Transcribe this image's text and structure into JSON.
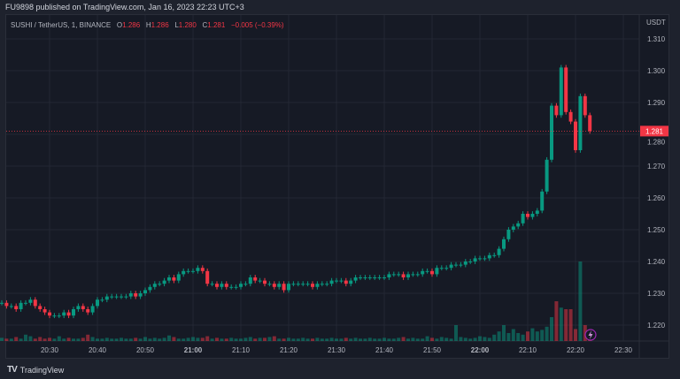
{
  "header": {
    "published": "FU9898 published on TradingView.com, Jan 16, 2023 22:23 UTC+3"
  },
  "legend": {
    "symbol": "SUSHI / TetherUS, 1, BINANCE",
    "o_label": "O",
    "o": "1.286",
    "h_label": "H",
    "h": "1.286",
    "l_label": "L",
    "l": "1.280",
    "c_label": "C",
    "c": "1.281",
    "change": "−0.005 (−0.39%)"
  },
  "axis": {
    "currency": "USDT",
    "current_price": "1.281"
  },
  "footer": {
    "brand": "TradingView"
  },
  "colors": {
    "up": "#089981",
    "down": "#f23645",
    "bg": "#161a25",
    "grid": "#232733"
  },
  "chart_data": {
    "type": "candlestick",
    "interval": "1m",
    "start_time": "20:20",
    "ylim": [
      1.215,
      1.312
    ],
    "y_ticks": [
      "1.220",
      "1.230",
      "1.240",
      "1.250",
      "1.260",
      "1.270",
      "1.280",
      "1.290",
      "1.300",
      "1.310"
    ],
    "x_ticks": [
      "20:30",
      "20:40",
      "20:50",
      "21:00",
      "21:10",
      "21:20",
      "21:30",
      "21:40",
      "21:50",
      "22:00",
      "22:10",
      "22:20",
      "22:30"
    ],
    "first_open": 1.227,
    "close": [
      1.227,
      1.226,
      1.226,
      1.225,
      1.227,
      1.227,
      1.228,
      1.226,
      1.225,
      1.224,
      1.223,
      1.223,
      1.223,
      1.224,
      1.223,
      1.225,
      1.226,
      1.225,
      1.224,
      1.226,
      1.228,
      1.228,
      1.229,
      1.229,
      1.229,
      1.229,
      1.229,
      1.23,
      1.229,
      1.23,
      1.231,
      1.232,
      1.233,
      1.233,
      1.234,
      1.235,
      1.234,
      1.236,
      1.237,
      1.237,
      1.237,
      1.238,
      1.237,
      1.233,
      1.233,
      1.232,
      1.233,
      1.232,
      1.232,
      1.232,
      1.233,
      1.233,
      1.235,
      1.234,
      1.234,
      1.233,
      1.233,
      1.232,
      1.233,
      1.231,
      1.233,
      1.233,
      1.233,
      1.233,
      1.233,
      1.232,
      1.233,
      1.233,
      1.233,
      1.234,
      1.234,
      1.234,
      1.233,
      1.234,
      1.235,
      1.235,
      1.235,
      1.235,
      1.235,
      1.235,
      1.235,
      1.236,
      1.236,
      1.236,
      1.235,
      1.236,
      1.236,
      1.236,
      1.237,
      1.237,
      1.236,
      1.238,
      1.238,
      1.238,
      1.239,
      1.239,
      1.239,
      1.24,
      1.24,
      1.241,
      1.241,
      1.241,
      1.242,
      1.242,
      1.244,
      1.247,
      1.25,
      1.251,
      1.252,
      1.255,
      1.254,
      1.255,
      1.256,
      1.262,
      1.272,
      1.289,
      1.286,
      1.301,
      1.287,
      1.284,
      1.275,
      1.292,
      1.286,
      1.281
    ],
    "volume": [
      4,
      3,
      3,
      5,
      3,
      8,
      6,
      3,
      5,
      3,
      4,
      3,
      6,
      3,
      4,
      3,
      3,
      4,
      8,
      5,
      3,
      3,
      4,
      3,
      3,
      4,
      3,
      3,
      4,
      3,
      5,
      3,
      4,
      3,
      4,
      7,
      5,
      3,
      3,
      4,
      5,
      4,
      4,
      6,
      3,
      4,
      3,
      3,
      4,
      3,
      3,
      4,
      5,
      3,
      4,
      4,
      5,
      6,
      3,
      3,
      4,
      3,
      3,
      4,
      3,
      3,
      4,
      3,
      3,
      4,
      3,
      3,
      4,
      3,
      4,
      3,
      3,
      4,
      3,
      3,
      4,
      3,
      3,
      4,
      5,
      3,
      4,
      3,
      3,
      6,
      4,
      3,
      5,
      4,
      3,
      20,
      5,
      4,
      3,
      4,
      6,
      5,
      4,
      8,
      12,
      20,
      10,
      15,
      10,
      8,
      12,
      16,
      12,
      14,
      18,
      30,
      50,
      42,
      40,
      40,
      15,
      100,
      20,
      8
    ]
  }
}
